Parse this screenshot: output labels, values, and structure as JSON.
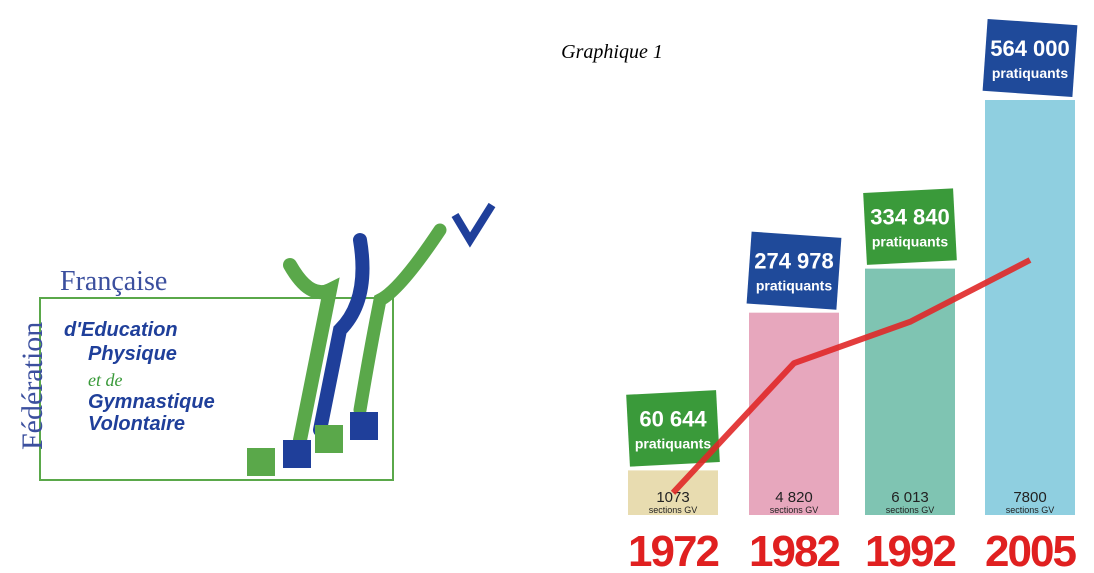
{
  "chart_data": {
    "type": "bar",
    "title": "Graphique 1",
    "categories": [
      "1972",
      "1982",
      "1992",
      "2005"
    ],
    "series": [
      {
        "name": "pratiquants",
        "values": [
          60644,
          274978,
          334840,
          564000
        ],
        "value_labels": [
          "60 644",
          "274 978",
          "334 840",
          "564 000"
        ],
        "bar_colors": [
          "#e8dcb0",
          "#e7a7bd",
          "#7fc4b2",
          "#8fcfe0"
        ],
        "label_colors": [
          "#3a9a3a",
          "#1f4a9a",
          "#3a9a3a",
          "#1f4a9a"
        ]
      },
      {
        "name": "sections GV",
        "type": "line",
        "color": "#e02828",
        "values": [
          1073,
          4820,
          6013,
          7800
        ],
        "value_labels": [
          "1073",
          "4 820",
          "6 013",
          "7800"
        ]
      }
    ]
  },
  "logo": {
    "lines": [
      "Fédération",
      "Française",
      "d'Education",
      "Physique",
      "et de",
      "Gymnastique",
      "Volontaire"
    ]
  }
}
